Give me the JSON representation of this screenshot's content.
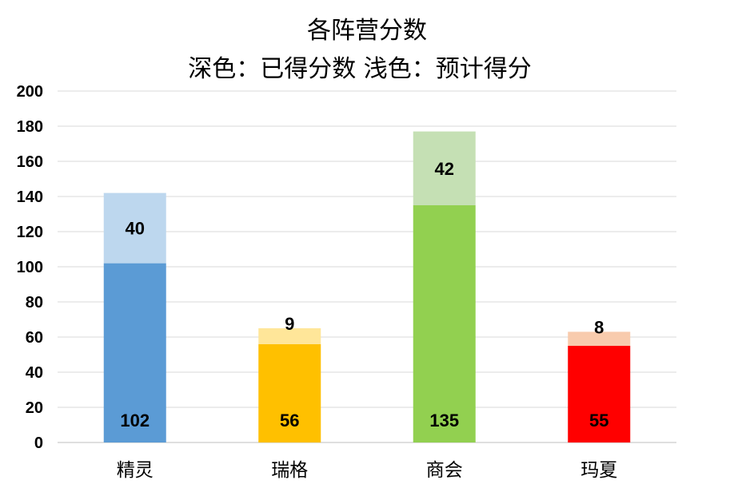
{
  "chart_data": {
    "type": "bar",
    "stacked": true,
    "title": "各阵营分数",
    "subtitle": "深色：已得分数 浅色：预计得分",
    "categories": [
      "精灵",
      "瑞格",
      "商会",
      "玛夏"
    ],
    "series": [
      {
        "values": [
          102,
          56,
          135,
          55
        ],
        "colors": [
          "#5b9bd5",
          "#ffc000",
          "#92d050",
          "#ff0000"
        ]
      },
      {
        "values": [
          40,
          9,
          42,
          8
        ],
        "colors": [
          "#bdd7ee",
          "#ffe699",
          "#c5e0b4",
          "#f8cbad"
        ]
      }
    ],
    "ylim": [
      0,
      200
    ],
    "yticks": [
      "0",
      "20",
      "40",
      "60",
      "80",
      "100",
      "120",
      "140",
      "160",
      "180",
      "200"
    ],
    "grid": true,
    "legend": "none"
  }
}
